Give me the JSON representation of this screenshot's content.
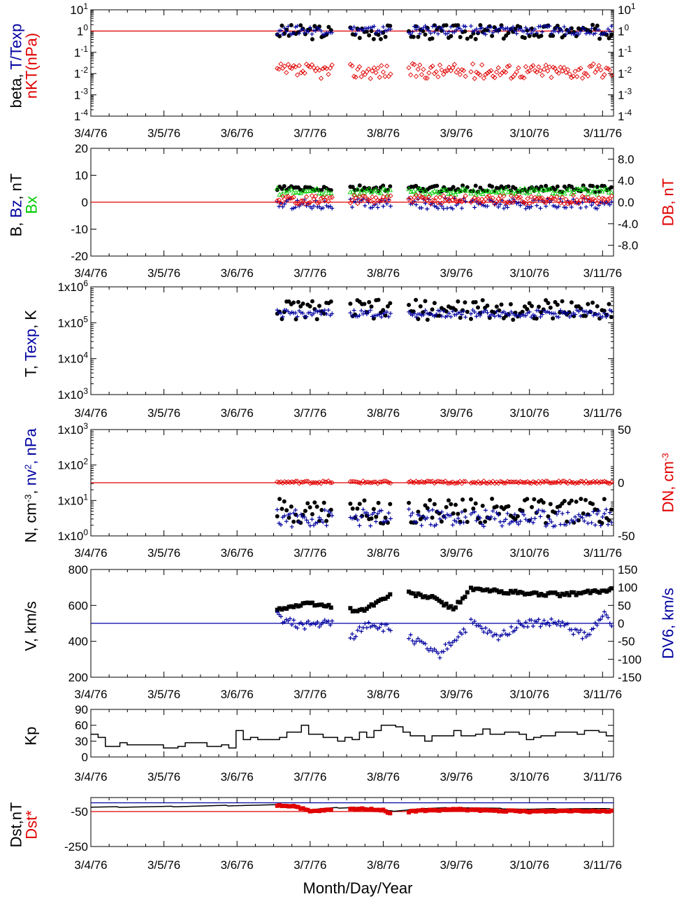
{
  "x_axis": {
    "title": "Month/Day/Year",
    "tick_labels": [
      "3/4/76",
      "3/5/76",
      "3/6/76",
      "3/7/76",
      "3/8/76",
      "3/9/76",
      "3/10/76",
      "3/11/76"
    ],
    "range_days": [
      0,
      7.15
    ]
  },
  "colors": {
    "black": "#000000",
    "blue": "#0000a0",
    "red": "#e00000",
    "green": "#00cc00"
  },
  "chart_data": [
    {
      "id": "beta",
      "type": "scatter",
      "ylabel": [
        [
          {
            "text": "beta, ",
            "color": "black"
          },
          {
            "text": "T/Texp",
            "color": "blue"
          }
        ],
        [
          {
            "text": "nKT(nPa)",
            "color": "red"
          }
        ]
      ],
      "yscale": "log",
      "ylim": [
        0.0001,
        10
      ],
      "left_ticks": [
        {
          "v": 10,
          "m": "10",
          "e": "1"
        },
        {
          "v": 1,
          "m": "1",
          "e": "0"
        },
        {
          "v": 0.1,
          "m": "1",
          "e": "-1"
        },
        {
          "v": 0.01,
          "m": "1",
          "e": "-2"
        },
        {
          "v": 0.001,
          "m": "1",
          "e": "-3"
        },
        {
          "v": 0.0001,
          "m": "1",
          "e": "-4"
        }
      ],
      "right_ticks": [
        {
          "v": 10,
          "m": "10",
          "e": "1"
        },
        {
          "v": 1,
          "m": "1",
          "e": "0"
        },
        {
          "v": 0.1,
          "m": "1",
          "e": "-1"
        },
        {
          "v": 0.01,
          "m": "1",
          "e": "-2"
        },
        {
          "v": 0.001,
          "m": "1",
          "e": "-3"
        },
        {
          "v": 0.0001,
          "m": "1",
          "e": "-4"
        }
      ],
      "reference_line": {
        "value": 1,
        "color": "red",
        "axis": "left"
      },
      "series": [
        {
          "marker": "dot",
          "color": "black",
          "base": 0.9,
          "jitter": 0.35,
          "log": true,
          "axis": "left"
        },
        {
          "marker": "plus",
          "color": "blue",
          "base": 1.1,
          "jitter": 0.2,
          "log": true,
          "axis": "left"
        },
        {
          "marker": "diamond",
          "color": "red",
          "base": 0.013,
          "jitter": 0.35,
          "log": true,
          "axis": "left"
        }
      ]
    },
    {
      "id": "bfield",
      "type": "scatter",
      "ylabel": [
        [
          {
            "text": "B, ",
            "color": "black"
          },
          {
            "text": "Bz",
            "color": "blue"
          },
          {
            "text": ", nT",
            "color": "black"
          }
        ],
        [
          {
            "text": "Bx",
            "color": "green"
          }
        ]
      ],
      "right_label": [
        [
          {
            "text": "DB, nT",
            "color": "red"
          }
        ]
      ],
      "yscale": "linear",
      "ylim": [
        -20,
        20
      ],
      "right_ylim": [
        -10,
        10
      ],
      "left_ticks": [
        {
          "v": 20,
          "t": "20"
        },
        {
          "v": 10,
          "t": "10"
        },
        {
          "v": 0,
          "t": "0"
        },
        {
          "v": -10,
          "t": "-10"
        },
        {
          "v": -20,
          "t": "-20"
        }
      ],
      "right_ticks": [
        {
          "v": 8,
          "t": "8.0"
        },
        {
          "v": 4,
          "t": "4.0"
        },
        {
          "v": 0,
          "t": "0.0"
        },
        {
          "v": -4,
          "t": "-4.0"
        },
        {
          "v": -8,
          "t": "-8.0"
        }
      ],
      "reference_line": {
        "value": 0,
        "color": "red",
        "axis": "left"
      },
      "series": [
        {
          "marker": "dot",
          "color": "black",
          "base": 5,
          "jitter": 1.2,
          "axis": "left"
        },
        {
          "marker": "triangle",
          "color": "green",
          "base": 4,
          "jitter": 1.2,
          "axis": "left"
        },
        {
          "marker": "plus",
          "color": "blue",
          "base": -0.5,
          "jitter": 2,
          "axis": "left"
        },
        {
          "marker": "diamond",
          "color": "red",
          "base": 0.5,
          "jitter": 0.8,
          "axis": "right"
        }
      ]
    },
    {
      "id": "temp",
      "type": "scatter",
      "ylabel": [
        [
          {
            "text": "T, ",
            "color": "black"
          },
          {
            "text": "Texp",
            "color": "blue"
          },
          {
            "text": ", K",
            "color": "black"
          }
        ]
      ],
      "yscale": "log",
      "ylim": [
        1000,
        1000000
      ],
      "left_ticks": [
        {
          "v": 1000000,
          "m": "1x10",
          "e": "6"
        },
        {
          "v": 100000,
          "m": "1x10",
          "e": "5"
        },
        {
          "v": 10000,
          "m": "1x10",
          "e": "4"
        },
        {
          "v": 1000,
          "m": "1x10",
          "e": "3"
        }
      ],
      "series": [
        {
          "marker": "dot",
          "color": "black",
          "base": 230000,
          "jitter": 0.28,
          "log": true,
          "axis": "left"
        },
        {
          "marker": "plus",
          "color": "blue",
          "base": 180000,
          "jitter": 0.1,
          "log": true,
          "axis": "left"
        }
      ]
    },
    {
      "id": "density",
      "type": "scatter",
      "ylabel": [
        [
          {
            "text": "N, cm",
            "color": "black"
          },
          {
            "text": "-3",
            "color": "black",
            "sup": true
          },
          {
            "text": ", ",
            "color": "black"
          },
          {
            "text": "nv",
            "color": "blue"
          },
          {
            "text": "2",
            "color": "blue",
            "sup": true
          },
          {
            "text": ", nPa",
            "color": "blue"
          }
        ]
      ],
      "right_label": [
        [
          {
            "text": "DN, cm",
            "color": "red"
          },
          {
            "text": "-3",
            "color": "red",
            "sup": true
          }
        ]
      ],
      "yscale": "log",
      "ylim": [
        1,
        1000
      ],
      "right_ylim": [
        -50,
        50
      ],
      "left_ticks": [
        {
          "v": 1000,
          "m": "1x10",
          "e": "3"
        },
        {
          "v": 100,
          "m": "1x10",
          "e": "2"
        },
        {
          "v": 10,
          "m": "1x10",
          "e": "1"
        },
        {
          "v": 1,
          "m": "1x10",
          "e": "0"
        }
      ],
      "right_ticks": [
        {
          "v": 50,
          "t": "50"
        },
        {
          "v": 0,
          "t": "0"
        },
        {
          "v": -50,
          "t": "-50"
        }
      ],
      "reference_line": {
        "value": 0,
        "color": "red",
        "axis": "right"
      },
      "series": [
        {
          "marker": "dot",
          "color": "black",
          "base": 5,
          "jitter": 0.35,
          "log": true,
          "axis": "left"
        },
        {
          "marker": "plus",
          "color": "blue",
          "base": 3.2,
          "jitter": 0.25,
          "log": true,
          "axis": "left"
        },
        {
          "marker": "diamond",
          "color": "red",
          "base": 0.5,
          "jitter": 1.2,
          "axis": "right"
        }
      ]
    },
    {
      "id": "velocity",
      "type": "scatter",
      "ylabel": [
        [
          {
            "text": "V, km/s",
            "color": "black"
          }
        ]
      ],
      "right_label": [
        [
          {
            "text": "DV6, km/s",
            "color": "blue"
          }
        ]
      ],
      "yscale": "linear",
      "ylim": [
        200,
        800
      ],
      "right_ylim": [
        -150,
        150
      ],
      "left_ticks": [
        {
          "v": 800,
          "t": "800"
        },
        {
          "v": 600,
          "t": "600"
        },
        {
          "v": 400,
          "t": "400"
        },
        {
          "v": 200,
          "t": "200"
        }
      ],
      "right_ticks": [
        {
          "v": 150,
          "t": "150"
        },
        {
          "v": 100,
          "t": "100"
        },
        {
          "v": 50,
          "t": "50"
        },
        {
          "v": 0,
          "t": "0"
        },
        {
          "v": -50,
          "t": "-50"
        },
        {
          "v": -100,
          "t": "-100"
        },
        {
          "v": -150,
          "t": "-150"
        }
      ],
      "reference_line": {
        "value": 500,
        "color": "blue",
        "axis": "left"
      },
      "series": [
        {
          "marker": "square",
          "color": "black",
          "curve": [
            [
              2.55,
              580
            ],
            [
              3.0,
              610
            ],
            [
              3.7,
              570
            ],
            [
              4.2,
              680
            ],
            [
              4.7,
              640
            ],
            [
              4.95,
              580
            ],
            [
              5.2,
              690
            ],
            [
              6.0,
              665
            ],
            [
              6.5,
              660
            ],
            [
              7.1,
              685
            ]
          ],
          "jitter": 10,
          "axis": "left"
        },
        {
          "marker": "plus",
          "color": "blue",
          "curve": [
            [
              2.55,
              20
            ],
            [
              2.8,
              -5
            ],
            [
              3.3,
              0
            ],
            [
              3.55,
              -40
            ],
            [
              3.8,
              0
            ],
            [
              4.3,
              -30
            ],
            [
              4.75,
              -90
            ],
            [
              5.2,
              0
            ],
            [
              5.55,
              -40
            ],
            [
              5.9,
              0
            ],
            [
              6.4,
              0
            ],
            [
              6.8,
              -40
            ],
            [
              7.0,
              30
            ],
            [
              7.15,
              -20
            ]
          ],
          "jitter": 12,
          "axis": "right"
        }
      ]
    },
    {
      "id": "kp",
      "type": "line",
      "ylabel": [
        [
          {
            "text": "Kp",
            "color": "black"
          }
        ]
      ],
      "yscale": "linear",
      "ylim": [
        0,
        90
      ],
      "left_ticks": [
        {
          "v": 90,
          "t": "90"
        },
        {
          "v": 60,
          "t": "60"
        },
        {
          "v": 30,
          "t": "30"
        },
        {
          "v": 0,
          "t": "0"
        }
      ],
      "step_values": [
        43,
        37,
        20,
        20,
        27,
        23,
        23,
        23,
        23,
        23,
        17,
        17,
        20,
        27,
        27,
        27,
        20,
        20,
        23,
        17,
        50,
        33,
        37,
        33,
        33,
        33,
        37,
        47,
        47,
        60,
        43,
        43,
        37,
        37,
        30,
        37,
        33,
        47,
        37,
        50,
        60,
        60,
        57,
        47,
        40,
        40,
        30,
        40,
        40,
        40,
        50,
        40,
        40,
        43,
        53,
        43,
        43,
        47,
        47,
        43,
        33,
        37,
        40,
        40,
        47,
        47,
        47,
        43,
        50,
        50,
        47,
        40
      ]
    },
    {
      "id": "dst",
      "type": "line",
      "ylabel": [
        [
          {
            "text": "Dst,nT",
            "color": "black"
          }
        ],
        [
          {
            "text": "Dst*",
            "color": "red"
          }
        ]
      ],
      "yscale": "linear",
      "ylim": [
        -250,
        30
      ],
      "left_ticks": [
        {
          "v": -50,
          "t": "-50"
        },
        {
          "v": -250,
          "t": "-250"
        }
      ],
      "reference_lines": [
        {
          "value": -50,
          "color": "red"
        },
        {
          "value": 0,
          "color": "blue"
        }
      ],
      "line_curve": [
        [
          0,
          -25
        ],
        [
          1,
          -22
        ],
        [
          2,
          -15
        ],
        [
          2.6,
          -12
        ],
        [
          3.0,
          -40
        ],
        [
          3.3,
          -30
        ],
        [
          3.7,
          -25
        ],
        [
          4.1,
          -48
        ],
        [
          4.5,
          -35
        ],
        [
          5.0,
          -27
        ],
        [
          5.5,
          -32
        ],
        [
          6.0,
          -37
        ],
        [
          6.6,
          -33
        ],
        [
          7.15,
          -35
        ]
      ],
      "series": [
        {
          "marker": "square",
          "color": "red",
          "curve": [
            [
              2.55,
              -15
            ],
            [
              2.8,
              -20
            ],
            [
              3.0,
              -50
            ],
            [
              3.3,
              -40
            ],
            [
              3.7,
              -35
            ],
            [
              4.0,
              -40
            ],
            [
              4.1,
              -62
            ],
            [
              4.5,
              -45
            ],
            [
              5.0,
              -38
            ],
            [
              5.5,
              -45
            ],
            [
              6.0,
              -50
            ],
            [
              6.6,
              -45
            ],
            [
              7.15,
              -48
            ]
          ],
          "jitter": 4,
          "axis": "left"
        }
      ]
    }
  ]
}
